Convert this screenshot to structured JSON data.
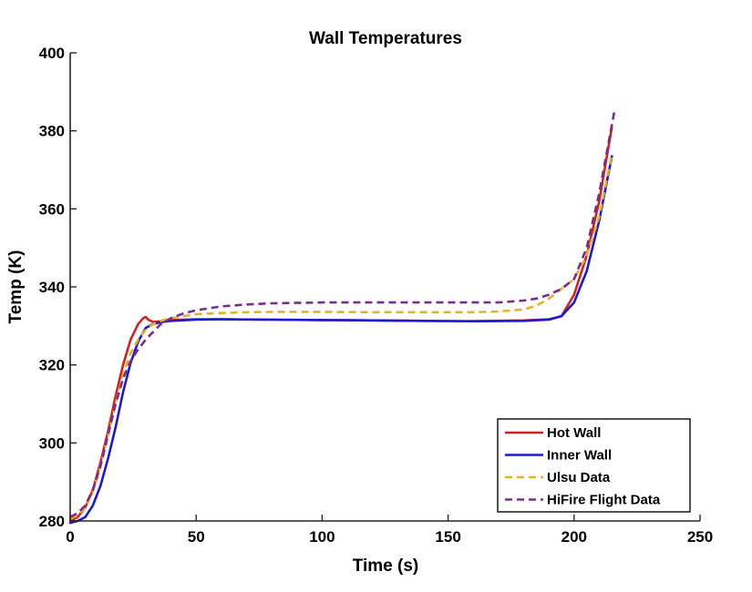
{
  "chart_data": {
    "type": "line",
    "title": "Wall Temperatures",
    "xlabel": "Time (s)",
    "ylabel": "Temp (K)",
    "xlim": [
      0,
      250
    ],
    "ylim": [
      280,
      400
    ],
    "xticks": [
      0,
      50,
      100,
      150,
      200,
      250
    ],
    "yticks": [
      280,
      300,
      320,
      340,
      360,
      380,
      400
    ],
    "grid": false,
    "legend_position": "bottom-right",
    "series": [
      {
        "name": "Hot Wall",
        "color": "#d62020",
        "style": "solid",
        "x": [
          0,
          3,
          6,
          9,
          12,
          15,
          18,
          21,
          24,
          27,
          29,
          30,
          31,
          33,
          36,
          40,
          50,
          60,
          80,
          100,
          120,
          140,
          160,
          180,
          190,
          195,
          200,
          205,
          210,
          215
        ],
        "y": [
          280,
          281,
          283.5,
          288,
          295,
          303,
          312,
          320,
          326.5,
          330.5,
          332,
          332.3,
          331.6,
          331,
          331.2,
          331.5,
          331.7,
          331.7,
          331.6,
          331.5,
          331.4,
          331.3,
          331.2,
          331.4,
          331.7,
          332.5,
          338,
          348,
          362,
          381
        ]
      },
      {
        "name": "Inner Wall",
        "color": "#1a1ad6",
        "style": "solid",
        "x": [
          0,
          3,
          6,
          9,
          12,
          15,
          18,
          21,
          24,
          27,
          30,
          33,
          36,
          40,
          50,
          60,
          80,
          100,
          120,
          140,
          160,
          180,
          190,
          195,
          200,
          205,
          210,
          215
        ],
        "y": [
          279.5,
          280,
          281,
          284,
          289,
          296,
          304,
          313,
          320.5,
          326,
          329.5,
          330.5,
          331,
          331.3,
          331.6,
          331.7,
          331.6,
          331.5,
          331.4,
          331.3,
          331.2,
          331.3,
          331.6,
          332.5,
          336,
          344,
          357,
          373.5
        ]
      },
      {
        "name": "Ulsu Data",
        "color": "#e6b31e",
        "style": "dashed",
        "x": [
          0,
          3,
          6,
          9,
          12,
          15,
          18,
          21,
          24,
          27,
          30,
          33,
          36,
          40,
          45,
          50,
          60,
          70,
          80,
          100,
          120,
          140,
          160,
          170,
          180,
          185,
          190,
          195,
          200,
          205,
          210,
          215
        ],
        "y": [
          280.5,
          281.5,
          283.5,
          287.5,
          294,
          302,
          310,
          317.5,
          323,
          326.5,
          329,
          330.5,
          331.3,
          332,
          332.5,
          333,
          333.3,
          333.5,
          333.6,
          333.6,
          333.5,
          333.5,
          333.5,
          333.7,
          334.2,
          335.2,
          337,
          339.5,
          342,
          348,
          358,
          374
        ]
      },
      {
        "name": "HiFire Flight Data",
        "color": "#7b2d8e",
        "style": "dashed",
        "x": [
          0,
          3,
          6,
          9,
          12,
          15,
          18,
          21,
          24,
          27,
          30,
          33,
          36,
          40,
          45,
          50,
          60,
          70,
          80,
          100,
          120,
          140,
          160,
          170,
          180,
          185,
          190,
          195,
          200,
          205,
          210,
          216
        ],
        "y": [
          281,
          282,
          284,
          288,
          294,
          302,
          310,
          316.5,
          321,
          324,
          326.5,
          328.5,
          330.5,
          332,
          333.2,
          334,
          335,
          335.5,
          335.8,
          336,
          336,
          336,
          336,
          336,
          336.5,
          337,
          338,
          339.5,
          342,
          350,
          364,
          385
        ]
      }
    ]
  }
}
